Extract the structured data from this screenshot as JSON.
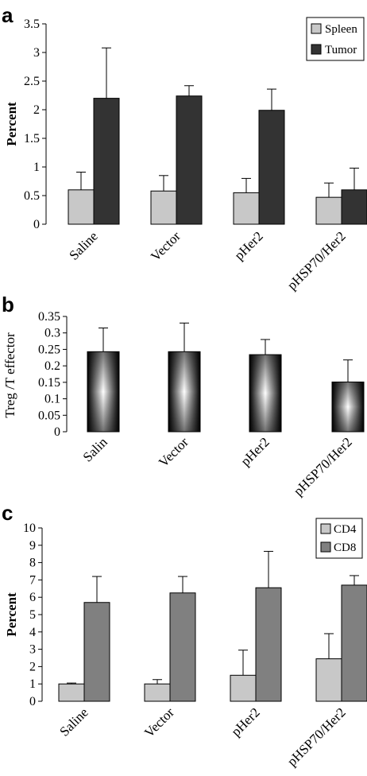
{
  "chart_data": [
    {
      "panel": "a",
      "type": "bar",
      "ylabel": "Percent",
      "ylim": [
        0,
        3.5
      ],
      "yticks": [
        "0",
        "0.5",
        "1",
        "1.5",
        "2",
        "2.5",
        "3",
        "3.5"
      ],
      "categories": [
        "Saline",
        "Vector",
        "pHer2",
        "pHSP70/Her2"
      ],
      "series": [
        {
          "name": "Spleen",
          "color": "#c8c8c8",
          "values": [
            0.6,
            0.58,
            0.55,
            0.47
          ],
          "errors": [
            0.31,
            0.27,
            0.25,
            0.25
          ]
        },
        {
          "name": "Tumor",
          "color": "#333333",
          "values": [
            2.2,
            2.24,
            1.99,
            0.6
          ],
          "errors": [
            0.88,
            0.18,
            0.37,
            0.38
          ]
        }
      ],
      "legend": "top-right"
    },
    {
      "panel": "b",
      "type": "bar",
      "ylabel": "Treg /T effector",
      "ylim": [
        0,
        0.35
      ],
      "yticks": [
        "0",
        "0.05",
        "0.1",
        "0.15",
        "0.2",
        "0.25",
        "0.3",
        "0.35"
      ],
      "categories": [
        "Salin",
        "Vector",
        "pHer2",
        "pHSP70/Her2"
      ],
      "series": [
        {
          "values": [
            0.243,
            0.243,
            0.234,
            0.151
          ],
          "errors": [
            0.072,
            0.087,
            0.046,
            0.067
          ]
        }
      ]
    },
    {
      "panel": "c",
      "type": "bar",
      "ylabel": "Percent",
      "ylim": [
        0,
        10
      ],
      "yticks": [
        "0",
        "1",
        "2",
        "3",
        "4",
        "5",
        "6",
        "7",
        "8",
        "9",
        "10"
      ],
      "categories": [
        "Saline",
        "Vector",
        "pHer2",
        "pHSP70/Her2"
      ],
      "series": [
        {
          "name": "CD4",
          "color": "#c8c8c8",
          "values": [
            1.0,
            1.0,
            1.5,
            2.45
          ],
          "errors": [
            0.05,
            0.25,
            1.45,
            1.45
          ]
        },
        {
          "name": "CD8",
          "color": "#808080",
          "values": [
            5.7,
            6.25,
            6.55,
            6.7
          ],
          "errors": [
            1.5,
            0.95,
            2.1,
            0.55
          ]
        }
      ],
      "legend": "top-right"
    }
  ]
}
